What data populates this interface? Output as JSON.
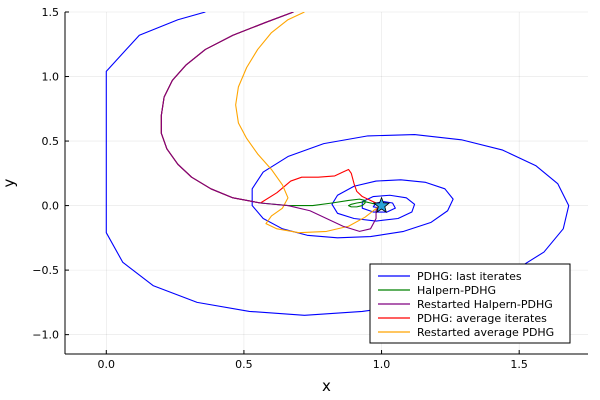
{
  "chart_data": {
    "type": "line",
    "title": "",
    "xlabel": "x",
    "ylabel": "y",
    "xlim": [
      -0.15,
      1.75
    ],
    "ylim": [
      -1.15,
      1.5
    ],
    "xticks": [
      0.0,
      0.5,
      1.0,
      1.5
    ],
    "xtick_labels": [
      "0.0",
      "0.5",
      "1.0",
      "1.5"
    ],
    "yticks": [
      -1.0,
      -0.5,
      0.0,
      0.5,
      1.0,
      1.5
    ],
    "ytick_labels": [
      "−1.0",
      "−0.5",
      "0.0",
      "0.5",
      "1.0",
      "1.5"
    ],
    "grid": true,
    "legend_position": "bottom-right",
    "series": [
      {
        "name": "PDHG: last iterates",
        "color": "#0000ff",
        "points": [
          [
            0.36,
            1.5
          ],
          [
            0.26,
            1.44
          ],
          [
            0.12,
            1.32
          ],
          [
            0.0,
            1.04
          ],
          [
            0.0,
            -0.21
          ],
          [
            0.06,
            -0.44
          ],
          [
            0.17,
            -0.62
          ],
          [
            0.33,
            -0.75
          ],
          [
            0.52,
            -0.82
          ],
          [
            0.72,
            -0.85
          ],
          [
            0.93,
            -0.82
          ],
          [
            1.13,
            -0.76
          ],
          [
            1.31,
            -0.66
          ],
          [
            1.47,
            -0.52
          ],
          [
            1.59,
            -0.36
          ],
          [
            1.66,
            -0.18
          ],
          [
            1.68,
            0.0
          ],
          [
            1.64,
            0.17
          ],
          [
            1.56,
            0.31
          ],
          [
            1.44,
            0.43
          ],
          [
            1.29,
            0.51
          ],
          [
            1.12,
            0.55
          ],
          [
            0.95,
            0.54
          ],
          [
            0.79,
            0.48
          ],
          [
            0.66,
            0.38
          ],
          [
            0.57,
            0.26
          ],
          [
            0.53,
            0.13
          ],
          [
            0.53,
            0.0
          ],
          [
            0.57,
            -0.1
          ],
          [
            0.64,
            -0.18
          ],
          [
            0.73,
            -0.23
          ],
          [
            0.84,
            -0.25
          ],
          [
            0.96,
            -0.24
          ],
          [
            1.08,
            -0.2
          ],
          [
            1.18,
            -0.13
          ],
          [
            1.24,
            -0.04
          ],
          [
            1.26,
            0.05
          ],
          [
            1.23,
            0.13
          ],
          [
            1.16,
            0.18
          ],
          [
            1.07,
            0.2
          ],
          [
            0.98,
            0.19
          ],
          [
            0.9,
            0.15
          ],
          [
            0.84,
            0.08
          ],
          [
            0.82,
            0.01
          ],
          [
            0.84,
            -0.06
          ],
          [
            0.9,
            -0.1
          ],
          [
            0.98,
            -0.12
          ],
          [
            1.06,
            -0.1
          ],
          [
            1.11,
            -0.05
          ],
          [
            1.12,
            0.01
          ],
          [
            1.09,
            0.06
          ],
          [
            1.03,
            0.08
          ],
          [
            0.97,
            0.07
          ],
          [
            0.93,
            0.03
          ],
          [
            0.93,
            -0.02
          ],
          [
            0.97,
            -0.05
          ],
          [
            1.02,
            -0.05
          ],
          [
            1.05,
            -0.02
          ],
          [
            1.04,
            0.02
          ],
          [
            1.01,
            0.03
          ],
          [
            0.98,
            0.02
          ],
          [
            0.97,
            -0.01
          ],
          [
            1.0,
            -0.02
          ],
          [
            1.01,
            0.0
          ],
          [
            1.0,
            0.0
          ]
        ]
      },
      {
        "name": "Halpern-PDHG",
        "color": "#008000",
        "points": [
          [
            0.68,
            1.5
          ],
          [
            0.58,
            1.42
          ],
          [
            0.46,
            1.32
          ],
          [
            0.36,
            1.21
          ],
          [
            0.29,
            1.09
          ],
          [
            0.24,
            0.97
          ],
          [
            0.21,
            0.84
          ],
          [
            0.2,
            0.7
          ],
          [
            0.2,
            0.56
          ],
          [
            0.22,
            0.44
          ],
          [
            0.26,
            0.32
          ],
          [
            0.31,
            0.22
          ],
          [
            0.38,
            0.13
          ],
          [
            0.46,
            0.06
          ],
          [
            0.56,
            0.02
          ],
          [
            0.66,
            0.0
          ],
          [
            0.75,
            0.0
          ],
          [
            0.82,
            0.02
          ],
          [
            0.88,
            0.04
          ],
          [
            0.92,
            0.05
          ],
          [
            0.94,
            0.04
          ],
          [
            0.94,
            0.02
          ],
          [
            0.93,
            0.0
          ],
          [
            0.91,
            -0.01
          ],
          [
            0.89,
            -0.01
          ],
          [
            0.88,
            0.0
          ],
          [
            0.89,
            0.01
          ],
          [
            0.91,
            0.02
          ],
          [
            0.94,
            0.03
          ],
          [
            0.96,
            0.02
          ],
          [
            0.98,
            0.01
          ],
          [
            1.0,
            0.0
          ],
          [
            1.0,
            0.0
          ]
        ]
      },
      {
        "name": "Restarted Halpern-PDHG",
        "color": "#800080",
        "points": [
          [
            0.68,
            1.5
          ],
          [
            0.58,
            1.42
          ],
          [
            0.46,
            1.32
          ],
          [
            0.36,
            1.21
          ],
          [
            0.29,
            1.09
          ],
          [
            0.24,
            0.97
          ],
          [
            0.21,
            0.84
          ],
          [
            0.2,
            0.7
          ],
          [
            0.2,
            0.56
          ],
          [
            0.22,
            0.44
          ],
          [
            0.26,
            0.32
          ],
          [
            0.31,
            0.22
          ],
          [
            0.38,
            0.13
          ],
          [
            0.46,
            0.06
          ],
          [
            0.56,
            0.02
          ],
          [
            0.66,
            0.0
          ],
          [
            0.74,
            -0.04
          ],
          [
            0.8,
            -0.1
          ],
          [
            0.86,
            -0.16
          ],
          [
            0.92,
            -0.2
          ],
          [
            0.96,
            -0.18
          ],
          [
            0.98,
            -0.1
          ],
          [
            0.98,
            -0.04
          ],
          [
            0.99,
            -0.01
          ],
          [
            1.0,
            0.0
          ],
          [
            1.0,
            0.0
          ]
        ]
      },
      {
        "name": "PDHG: average iterates",
        "color": "#ff0000",
        "points": [
          [
            0.68,
            1.5
          ],
          [
            0.58,
            1.42
          ],
          [
            0.46,
            1.32
          ],
          [
            0.36,
            1.21
          ],
          [
            0.29,
            1.09
          ],
          [
            0.24,
            0.97
          ],
          [
            0.21,
            0.84
          ],
          [
            0.2,
            0.7
          ],
          [
            0.2,
            0.56
          ],
          [
            0.22,
            0.44
          ],
          [
            0.26,
            0.32
          ],
          [
            0.31,
            0.22
          ],
          [
            0.38,
            0.13
          ],
          [
            0.46,
            0.06
          ],
          [
            0.56,
            0.02
          ],
          [
            0.62,
            0.1
          ],
          [
            0.67,
            0.19
          ],
          [
            0.71,
            0.22
          ],
          [
            0.77,
            0.22
          ],
          [
            0.83,
            0.23
          ],
          [
            0.86,
            0.26
          ],
          [
            0.88,
            0.28
          ],
          [
            0.89,
            0.25
          ],
          [
            0.9,
            0.17
          ],
          [
            0.91,
            0.11
          ],
          [
            0.93,
            0.07
          ],
          [
            0.95,
            0.05
          ],
          [
            0.97,
            0.03
          ],
          [
            0.99,
            0.01
          ],
          [
            1.0,
            0.0
          ]
        ]
      },
      {
        "name": "Restarted average PDHG",
        "color": "#ffa500",
        "points": [
          [
            0.72,
            1.5
          ],
          [
            0.66,
            1.44
          ],
          [
            0.6,
            1.34
          ],
          [
            0.55,
            1.21
          ],
          [
            0.51,
            1.07
          ],
          [
            0.48,
            0.92
          ],
          [
            0.47,
            0.78
          ],
          [
            0.48,
            0.64
          ],
          [
            0.51,
            0.52
          ],
          [
            0.55,
            0.4
          ],
          [
            0.6,
            0.28
          ],
          [
            0.64,
            0.16
          ],
          [
            0.66,
            0.06
          ],
          [
            0.64,
            -0.02
          ],
          [
            0.6,
            -0.08
          ],
          [
            0.58,
            -0.14
          ],
          [
            0.62,
            -0.18
          ],
          [
            0.7,
            -0.21
          ],
          [
            0.8,
            -0.2
          ],
          [
            0.88,
            -0.16
          ],
          [
            0.94,
            -0.09
          ],
          [
            0.97,
            -0.04
          ],
          [
            0.99,
            -0.01
          ],
          [
            1.0,
            0.0
          ]
        ]
      }
    ],
    "marker": {
      "type": "star",
      "x": 1.0,
      "y": 0.0,
      "color": "#2aa3d8"
    }
  }
}
